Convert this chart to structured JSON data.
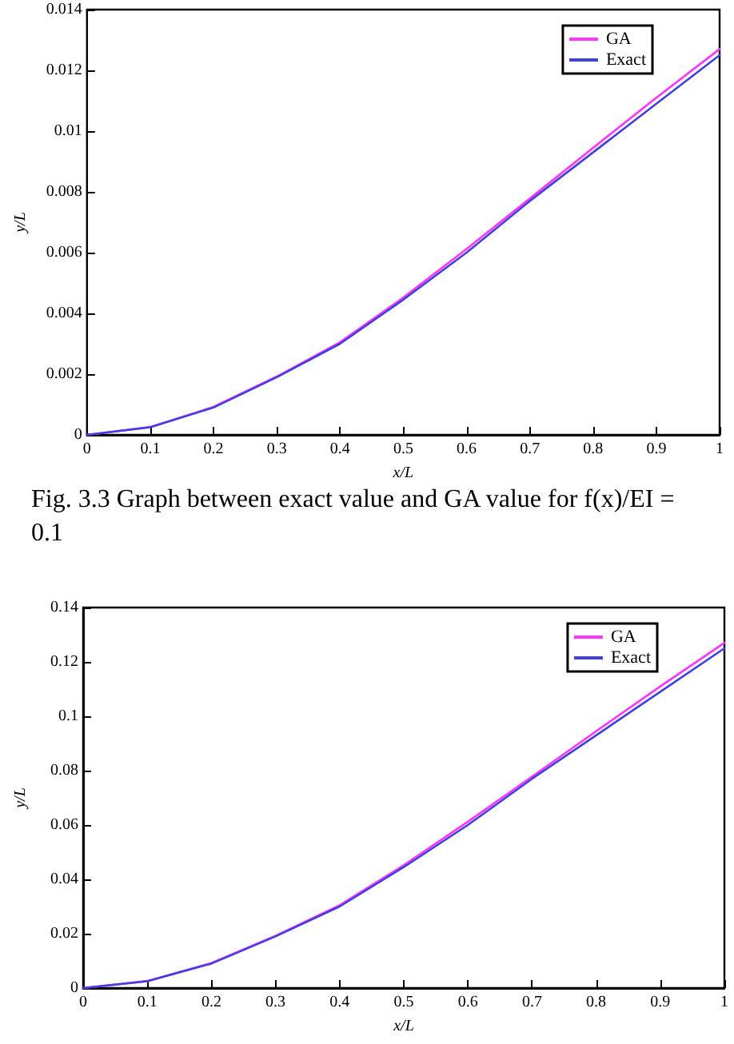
{
  "chart_data": [
    {
      "type": "line",
      "xlabel": "x/L",
      "ylabel": "y/L",
      "x": [
        0,
        0.1,
        0.2,
        0.3,
        0.4,
        0.5,
        0.6,
        0.7,
        0.8,
        0.9,
        1
      ],
      "series": [
        {
          "name": "GA",
          "color": "#ff33ff",
          "values": [
            0,
            0.00026,
            0.00092,
            0.00192,
            0.00305,
            0.00452,
            0.00612,
            0.00778,
            0.00945,
            0.0111,
            0.0127
          ]
        },
        {
          "name": "Exact",
          "color": "#4040e0",
          "values": [
            0,
            0.00025,
            0.0009,
            0.0019,
            0.003,
            0.00445,
            0.006,
            0.0077,
            0.0093,
            0.0109,
            0.0125
          ]
        }
      ],
      "xlim": [
        0,
        1
      ],
      "xticks": [
        0,
        0.1,
        0.2,
        0.3,
        0.4,
        0.5,
        0.6,
        0.7,
        0.8,
        0.9,
        1
      ],
      "ylim": [
        0,
        0.014
      ],
      "yticks": [
        0,
        0.002,
        0.004,
        0.006,
        0.008,
        0.01,
        0.012,
        0.014
      ],
      "legend": "top right",
      "grid": false,
      "marker": "none",
      "line_style": "solid",
      "annotations": [
        "Fig. 3.3 Graph between exact value and GA value for f(x)/EI = 0.1"
      ]
    },
    {
      "type": "line",
      "xlabel": "x/L",
      "ylabel": "y/L",
      "x": [
        0,
        0.1,
        0.2,
        0.3,
        0.4,
        0.5,
        0.6,
        0.7,
        0.8,
        0.9,
        1
      ],
      "series": [
        {
          "name": "GA",
          "color": "#ff33ff",
          "values": [
            0,
            0.0026,
            0.0092,
            0.0192,
            0.0305,
            0.0452,
            0.0612,
            0.0778,
            0.0945,
            0.111,
            0.127
          ]
        },
        {
          "name": "Exact",
          "color": "#4040e0",
          "values": [
            0,
            0.0025,
            0.009,
            0.019,
            0.03,
            0.0445,
            0.06,
            0.077,
            0.093,
            0.109,
            0.125
          ]
        }
      ],
      "xlim": [
        0,
        1
      ],
      "xticks": [
        0,
        0.1,
        0.2,
        0.3,
        0.4,
        0.5,
        0.6,
        0.7,
        0.8,
        0.9,
        1
      ],
      "ylim": [
        0,
        0.14
      ],
      "yticks": [
        0,
        0.02,
        0.04,
        0.06,
        0.08,
        0.1,
        0.12,
        0.14
      ],
      "legend": "top right",
      "grid": false,
      "marker": "none",
      "line_style": "solid"
    }
  ]
}
